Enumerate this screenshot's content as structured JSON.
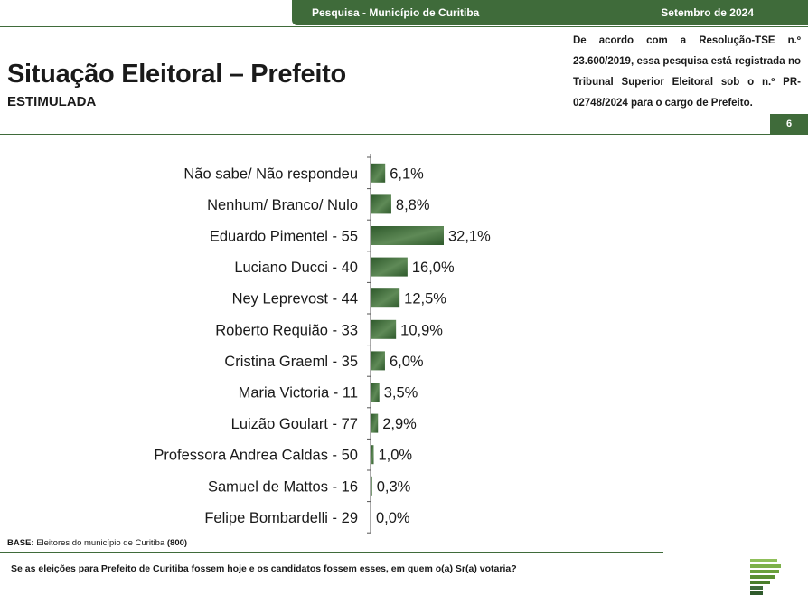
{
  "header": {
    "survey_label": "Pesquisa - Município de Curitiba",
    "date_label": "Setembro de 2024",
    "title": "Situação Eleitoral – Prefeito",
    "subtitle": "ESTIMULADA",
    "registration_note": "De acordo com a Resolução-TSE n.º 23.600/2019, essa pesquisa está registrada no Tribunal Superior Eleitoral sob o n.º PR-02748/2024 para o cargo de Prefeito.",
    "page_number": "6"
  },
  "footer": {
    "base_label": "BASE:",
    "base_text": "Eleitores do município de Curitiba",
    "base_count": "(800)",
    "question": "Se as eleições para Prefeito de Curitiba fossem hoje e os candidatos fossem esses, em quem o(a) Sr(a) votaria?"
  },
  "colors": {
    "brand_green": "#3f6b3a",
    "bar_dark": "#2f5a2c",
    "bar_light": "#9dbb94"
  },
  "chart_data": {
    "type": "bar",
    "orientation": "horizontal",
    "categories": [
      "Não sabe/ Não respondeu",
      "Nenhum/ Branco/ Nulo",
      "Eduardo Pimentel - 55",
      "Luciano Ducci - 40",
      "Ney Leprevost - 44",
      "Roberto Requião - 33",
      "Cristina Graeml - 35",
      "Maria Victoria - 11",
      "Luizão Goulart - 77",
      "Professora Andrea Caldas - 50",
      "Samuel de Mattos - 16",
      "Felipe Bombardelli - 29"
    ],
    "values": [
      6.1,
      8.8,
      32.1,
      16.0,
      12.5,
      10.9,
      6.0,
      3.5,
      2.9,
      1.0,
      0.3,
      0.0
    ],
    "value_labels": [
      "6,1%",
      "8,8%",
      "32,1%",
      "16,0%",
      "12,5%",
      "10,9%",
      "6,0%",
      "3,5%",
      "2,9%",
      "1,0%",
      "0,3%",
      "0,0%"
    ],
    "unit": "%",
    "grid": false
  }
}
